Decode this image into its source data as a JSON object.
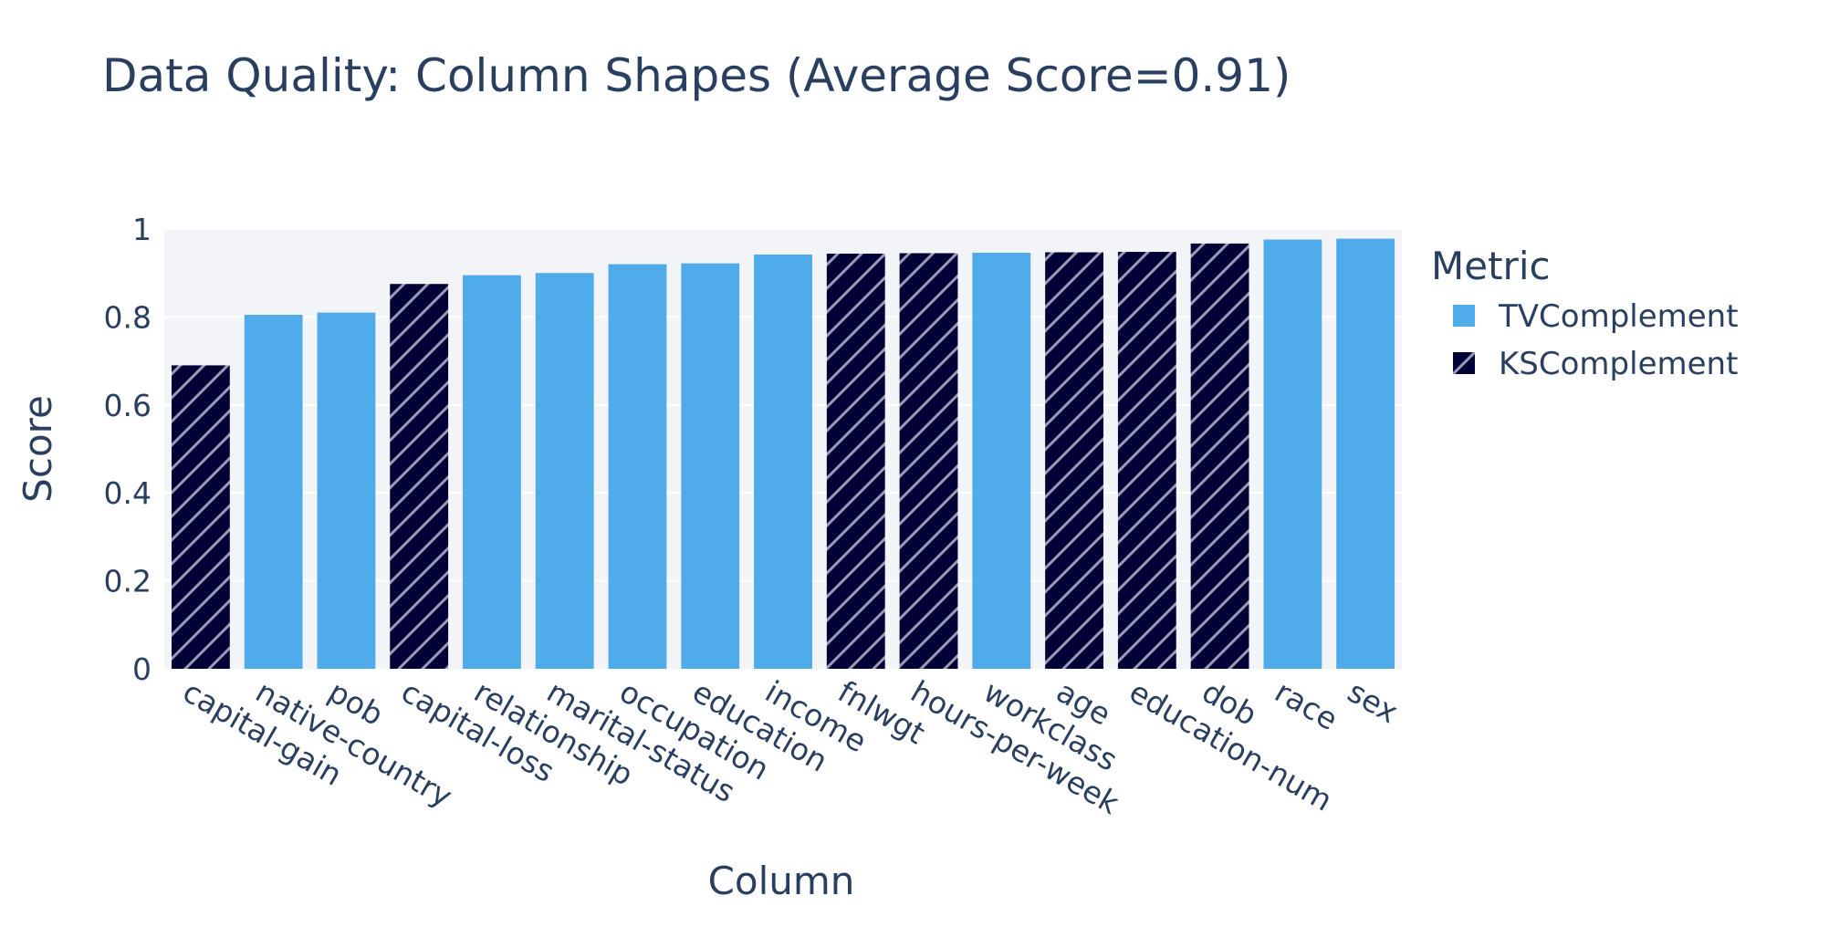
{
  "chart_data": {
    "type": "bar",
    "title": "Data Quality: Column Shapes (Average Score=0.91)",
    "xlabel": "Column",
    "ylabel": "Score",
    "ylim": [
      0,
      1
    ],
    "yticks": [
      "0",
      "0.2",
      "0.4",
      "0.6",
      "0.8",
      "1"
    ],
    "grid": true,
    "legend": {
      "title": "Metric",
      "placement": "right",
      "entries": [
        {
          "name": "TVComplement",
          "color": "#4FABEA",
          "pattern": "solid"
        },
        {
          "name": "KSComplement",
          "color": "#000036",
          "pattern": "hatched"
        }
      ]
    },
    "bars": [
      {
        "column": "capital-gain",
        "metric": "KSComplement",
        "value": 0.69
      },
      {
        "column": "native-country",
        "metric": "TVComplement",
        "value": 0.805
      },
      {
        "column": "pob",
        "metric": "TVComplement",
        "value": 0.81
      },
      {
        "column": "capital-loss",
        "metric": "KSComplement",
        "value": 0.875
      },
      {
        "column": "relationship",
        "metric": "TVComplement",
        "value": 0.895
      },
      {
        "column": "marital-status",
        "metric": "TVComplement",
        "value": 0.9
      },
      {
        "column": "occupation",
        "metric": "TVComplement",
        "value": 0.92
      },
      {
        "column": "education",
        "metric": "TVComplement",
        "value": 0.922
      },
      {
        "column": "income",
        "metric": "TVComplement",
        "value": 0.942
      },
      {
        "column": "fnlwgt",
        "metric": "KSComplement",
        "value": 0.944
      },
      {
        "column": "hours-per-week",
        "metric": "KSComplement",
        "value": 0.945
      },
      {
        "column": "workclass",
        "metric": "TVComplement",
        "value": 0.946
      },
      {
        "column": "age",
        "metric": "KSComplement",
        "value": 0.947
      },
      {
        "column": "education-num",
        "metric": "KSComplement",
        "value": 0.948
      },
      {
        "column": "dob",
        "metric": "KSComplement",
        "value": 0.967
      },
      {
        "column": "race",
        "metric": "TVComplement",
        "value": 0.976
      },
      {
        "column": "sex",
        "metric": "TVComplement",
        "value": 0.978
      }
    ],
    "colors": {
      "plot_background": "#F3F4F7",
      "gridline": "#FFFFFF",
      "text": "#2A3F5F"
    }
  }
}
